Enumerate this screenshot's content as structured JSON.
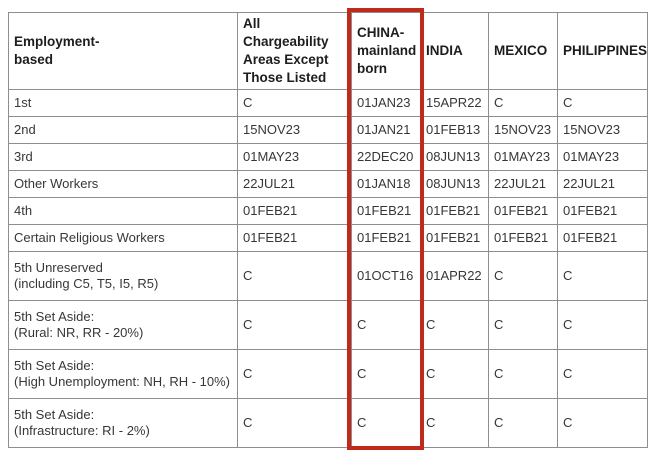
{
  "table": {
    "columns": [
      {
        "label": "Employment-\nbased"
      },
      {
        "label": "All Chargeability\nAreas Except\nThose Listed"
      },
      {
        "label": "CHINA-\nmainland\nborn",
        "highlighted": true
      },
      {
        "label": "INDIA"
      },
      {
        "label": "MEXICO"
      },
      {
        "label": "PHILIPPINES"
      }
    ],
    "rows": [
      {
        "category": "1st",
        "values": [
          "C",
          "01JAN23",
          "15APR22",
          "C",
          "C"
        ]
      },
      {
        "category": "2nd",
        "values": [
          "15NOV23",
          "01JAN21",
          "01FEB13",
          "15NOV23",
          "15NOV23"
        ]
      },
      {
        "category": "3rd",
        "values": [
          "01MAY23",
          "22DEC20",
          "08JUN13",
          "01MAY23",
          "01MAY23"
        ]
      },
      {
        "category": "Other Workers",
        "values": [
          "22JUL21",
          "01JAN18",
          "08JUN13",
          "22JUL21",
          "22JUL21"
        ]
      },
      {
        "category": "4th",
        "values": [
          "01FEB21",
          "01FEB21",
          "01FEB21",
          "01FEB21",
          "01FEB21"
        ]
      },
      {
        "category": "Certain Religious Workers",
        "values": [
          "01FEB21",
          "01FEB21",
          "01FEB21",
          "01FEB21",
          "01FEB21"
        ]
      },
      {
        "category": "5th Unreserved\n(including C5, T5, I5, R5)",
        "values": [
          "C",
          "01OCT16",
          "01APR22",
          "C",
          "C"
        ]
      },
      {
        "category": "5th Set Aside:\n(Rural: NR, RR - 20%)",
        "values": [
          "C",
          "C",
          "C",
          "C",
          "C"
        ]
      },
      {
        "category": "5th Set Aside:\n(High Unemployment: NH, RH - 10%)",
        "values": [
          "C",
          "C",
          "C",
          "C",
          "C"
        ]
      },
      {
        "category": "5th Set Aside:\n(Infrastructure: RI - 2%)",
        "values": [
          "C",
          "C",
          "C",
          "C",
          "C"
        ]
      }
    ]
  },
  "colors": {
    "highlight_border": "#bf2a1a",
    "table_border": "#8e8e8e",
    "header_text": "#1d1d1d",
    "body_text": "#37373a"
  }
}
